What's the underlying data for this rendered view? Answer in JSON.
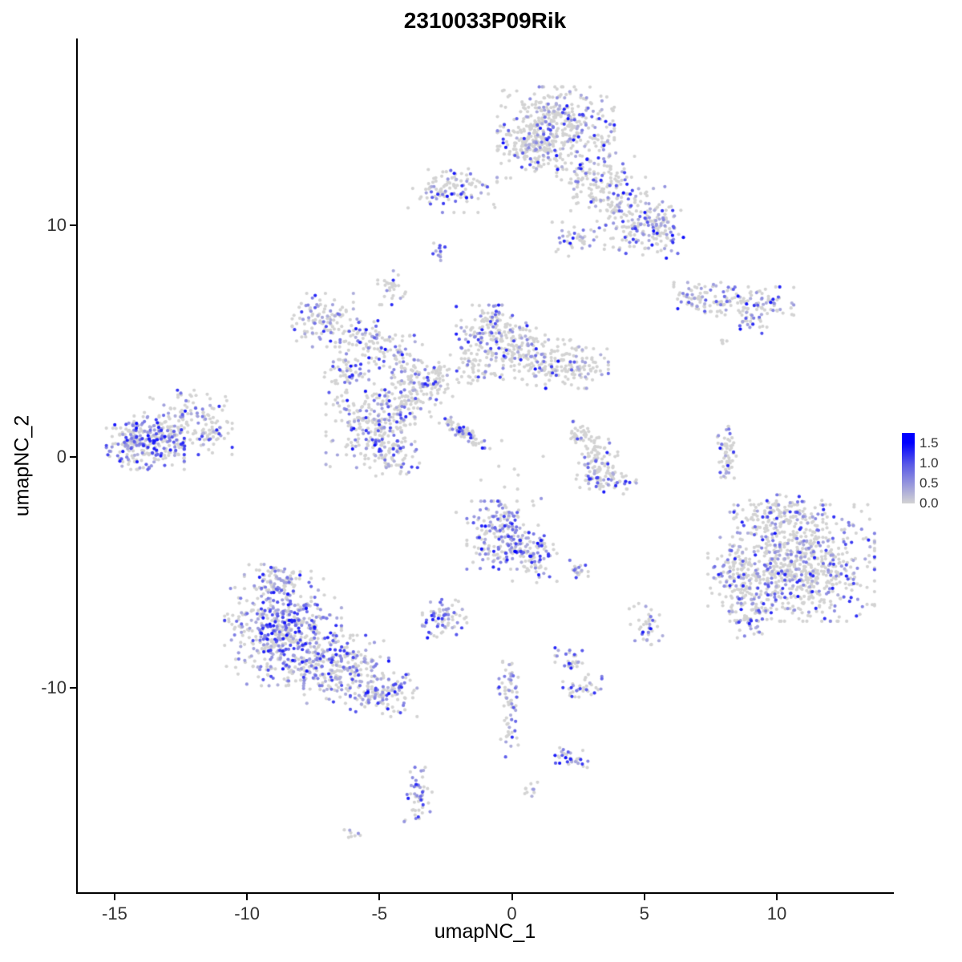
{
  "chart_data": {
    "type": "scatter",
    "title": "2310033P09Rik",
    "xlabel": "umapNC_1",
    "ylabel": "umapNC_2",
    "xlim": [
      -16.45,
      14.42
    ],
    "ylim": [
      -18.91,
      18.08
    ],
    "x_ticks": [
      {
        "v": -15,
        "label": "-15"
      },
      {
        "v": -10,
        "label": "-10"
      },
      {
        "v": -5,
        "label": "-5"
      },
      {
        "v": 0,
        "label": "0"
      },
      {
        "v": 5,
        "label": "5"
      },
      {
        "v": 10,
        "label": "10"
      }
    ],
    "y_ticks": [
      {
        "v": 10,
        "label": "10"
      },
      {
        "v": 0,
        "label": "0"
      },
      {
        "v": -10,
        "label": "-10"
      }
    ],
    "grid": false,
    "legend_position": "right",
    "point_radius": 2.1,
    "seed": 42,
    "color_scale": {
      "low_color": "#D3D3D3",
      "high_color": "#0000FF",
      "min": 0.0,
      "max": 1.5,
      "bar_max": 1.75,
      "labels": [
        "1.5",
        "1.0",
        "0.5",
        "0.0"
      ],
      "label_values": [
        1.5,
        1.0,
        0.5,
        0.0
      ]
    },
    "clusters": [
      {
        "cx": 1.6,
        "cy": 14.2,
        "sx": 1.05,
        "sy": 0.85,
        "n": 430,
        "expr": 0.25
      },
      {
        "cx": 0.55,
        "cy": 13.2,
        "sx": 0.5,
        "sy": 0.55,
        "n": 90,
        "expr": 0.2
      },
      {
        "cx": 3.1,
        "cy": 12.1,
        "sx": 0.7,
        "sy": 0.7,
        "n": 140,
        "expr": 0.3
      },
      {
        "cx": 4.5,
        "cy": 10.4,
        "sx": 0.75,
        "sy": 0.8,
        "n": 170,
        "expr": 0.35
      },
      {
        "cx": 2.3,
        "cy": 9.4,
        "sx": 0.4,
        "sy": 0.35,
        "n": 40,
        "expr": 0.3
      },
      {
        "cx": 5.55,
        "cy": 9.6,
        "sx": 0.45,
        "sy": 0.5,
        "n": 70,
        "expr": 0.45
      },
      {
        "cx": -2.3,
        "cy": 11.5,
        "sx": 0.8,
        "sy": 0.45,
        "n": 110,
        "expr": 0.3
      },
      {
        "cx": -2.85,
        "cy": 8.9,
        "sx": 0.15,
        "sy": 0.2,
        "n": 12,
        "expr": 0.3
      },
      {
        "cx": -4.6,
        "cy": 7.3,
        "sx": 0.25,
        "sy": 0.35,
        "n": 30,
        "expr": 0.2
      },
      {
        "cx": 7.1,
        "cy": 6.9,
        "sx": 0.5,
        "sy": 0.3,
        "n": 60,
        "expr": 0.35
      },
      {
        "cx": 8.9,
        "cy": 6.6,
        "sx": 0.8,
        "sy": 0.35,
        "n": 110,
        "expr": 0.35
      },
      {
        "cx": 9.0,
        "cy": 5.85,
        "sx": 0.3,
        "sy": 0.25,
        "n": 25,
        "expr": 0.3
      },
      {
        "cx": -7.2,
        "cy": 5.9,
        "sx": 0.55,
        "sy": 0.55,
        "n": 110,
        "expr": 0.35
      },
      {
        "cx": -5.6,
        "cy": 5.0,
        "sx": 0.45,
        "sy": 0.45,
        "n": 70,
        "expr": 0.3
      },
      {
        "cx": -6.3,
        "cy": 3.6,
        "sx": 0.4,
        "sy": 0.4,
        "n": 60,
        "expr": 0.3
      },
      {
        "cx": -4.2,
        "cy": 4.3,
        "sx": 0.5,
        "sy": 0.5,
        "n": 70,
        "expr": 0.3
      },
      {
        "cx": -0.9,
        "cy": 5.5,
        "sx": 0.6,
        "sy": 0.5,
        "n": 120,
        "expr": 0.3
      },
      {
        "cx": 0.2,
        "cy": 4.6,
        "sx": 0.7,
        "sy": 0.6,
        "n": 140,
        "expr": 0.25
      },
      {
        "cx": 1.9,
        "cy": 4.0,
        "sx": 0.8,
        "sy": 0.5,
        "n": 160,
        "expr": 0.3
      },
      {
        "cx": -1.6,
        "cy": 4.0,
        "sx": 0.4,
        "sy": 0.4,
        "n": 50,
        "expr": 0.2
      },
      {
        "cx": -5.4,
        "cy": 1.2,
        "sx": 0.8,
        "sy": 0.8,
        "n": 230,
        "expr": 0.35
      },
      {
        "cx": -4.0,
        "cy": 2.5,
        "sx": 0.6,
        "sy": 0.6,
        "n": 120,
        "expr": 0.3
      },
      {
        "cx": -3.0,
        "cy": 3.3,
        "sx": 0.5,
        "sy": 0.4,
        "n": 70,
        "expr": 0.25
      },
      {
        "cx": -4.6,
        "cy": 0.0,
        "sx": 0.5,
        "sy": 0.4,
        "n": 60,
        "expr": 0.3
      },
      {
        "cx": -1.9,
        "cy": 1.1,
        "sx": 0.6,
        "sy": 0.15,
        "rot": -40,
        "n": 70,
        "expr": 0.25
      },
      {
        "cx": -13.9,
        "cy": 0.6,
        "sx": 0.7,
        "sy": 0.55,
        "n": 280,
        "expr": 0.5
      },
      {
        "cx": -12.3,
        "cy": 1.4,
        "sx": 0.8,
        "sy": 0.7,
        "n": 140,
        "expr": 0.3
      },
      {
        "cx": -11.3,
        "cy": 1.0,
        "sx": 0.3,
        "sy": 0.3,
        "n": 30,
        "expr": 0.2
      },
      {
        "cx": 2.6,
        "cy": 0.9,
        "sx": 0.3,
        "sy": 0.3,
        "n": 40,
        "expr": 0.15
      },
      {
        "cx": 3.2,
        "cy": 0.1,
        "sx": 0.35,
        "sy": 0.35,
        "n": 50,
        "expr": 0.15
      },
      {
        "cx": 3.1,
        "cy": -0.9,
        "sx": 0.35,
        "sy": 0.3,
        "n": 50,
        "expr": 0.2
      },
      {
        "cx": 3.9,
        "cy": -1.0,
        "sx": 0.35,
        "sy": 0.3,
        "n": 40,
        "expr": 0.2
      },
      {
        "cx": 8.05,
        "cy": 0.2,
        "sx": 0.18,
        "sy": 0.65,
        "n": 60,
        "expr": 0.3
      },
      {
        "cx": 10.9,
        "cy": -4.6,
        "sx": 1.3,
        "sy": 1.2,
        "n": 700,
        "expr": 0.3
      },
      {
        "cx": 8.6,
        "cy": -5.2,
        "sx": 0.6,
        "sy": 0.9,
        "n": 150,
        "expr": 0.35
      },
      {
        "cx": 10.0,
        "cy": -2.6,
        "sx": 0.8,
        "sy": 0.45,
        "n": 120,
        "expr": 0.3
      },
      {
        "cx": 8.9,
        "cy": -7.0,
        "sx": 0.4,
        "sy": 0.4,
        "n": 60,
        "expr": 0.3
      },
      {
        "cx": -0.5,
        "cy": -3.4,
        "sx": 0.6,
        "sy": 0.7,
        "n": 200,
        "expr": 0.55
      },
      {
        "cx": 0.8,
        "cy": -4.4,
        "sx": 0.4,
        "sy": 0.5,
        "n": 80,
        "expr": 0.5
      },
      {
        "cx": 2.4,
        "cy": -4.9,
        "sx": 0.2,
        "sy": 0.2,
        "n": 20,
        "expr": 0.35
      },
      {
        "cx": -2.6,
        "cy": -7.0,
        "sx": 0.4,
        "sy": 0.4,
        "n": 70,
        "expr": 0.45
      },
      {
        "cx": -8.7,
        "cy": -7.6,
        "sx": 1.05,
        "sy": 1.1,
        "n": 550,
        "expr": 0.5
      },
      {
        "cx": -6.6,
        "cy": -9.2,
        "sx": 0.9,
        "sy": 0.7,
        "n": 250,
        "expr": 0.45
      },
      {
        "cx": -4.9,
        "cy": -10.3,
        "sx": 0.6,
        "sy": 0.45,
        "n": 120,
        "expr": 0.4
      },
      {
        "cx": -8.9,
        "cy": -5.4,
        "sx": 0.6,
        "sy": 0.35,
        "n": 80,
        "expr": 0.4
      },
      {
        "cx": 2.2,
        "cy": -8.9,
        "sx": 0.3,
        "sy": 0.3,
        "n": 30,
        "expr": 0.4
      },
      {
        "cx": 2.6,
        "cy": -10.0,
        "sx": 0.35,
        "sy": 0.3,
        "n": 35,
        "expr": 0.4
      },
      {
        "cx": 5.0,
        "cy": -7.3,
        "sx": 0.3,
        "sy": 0.45,
        "n": 40,
        "expr": 0.35
      },
      {
        "cx": -0.2,
        "cy": -10.7,
        "sx": 0.18,
        "sy": 1.2,
        "n": 70,
        "expr": 0.4
      },
      {
        "cx": 2.2,
        "cy": -12.9,
        "sx": 0.3,
        "sy": 0.3,
        "n": 35,
        "expr": 0.5
      },
      {
        "cx": -3.6,
        "cy": -14.7,
        "sx": 0.25,
        "sy": 0.6,
        "n": 50,
        "expr": 0.45
      },
      {
        "cx": -6.1,
        "cy": -16.3,
        "sx": 0.15,
        "sy": 0.12,
        "n": 8,
        "expr": 0.1
      },
      {
        "cx": 0.6,
        "cy": -14.4,
        "sx": 0.15,
        "sy": 0.15,
        "n": 10,
        "expr": 0.5
      },
      {
        "cx": 8.0,
        "cy": 4.9,
        "sx": 0.12,
        "sy": 0.1,
        "n": 5,
        "expr": 0.0
      },
      {
        "cx": 0.3,
        "cy": -1.2,
        "sx": 1.3,
        "sy": 0.9,
        "n": 12,
        "expr": 0.1
      }
    ],
    "extra_points": [
      {
        "x": 0.05,
        "y": -4.1,
        "v": 1.5
      },
      {
        "x": 8.8,
        "y": 6.6,
        "v": 1.35
      },
      {
        "x": 9.8,
        "y": 6.8,
        "v": 1.3
      },
      {
        "x": -13.8,
        "y": 0.4,
        "v": 1.1
      },
      {
        "x": -1.2,
        "y": -3.0,
        "v": 1.2
      }
    ]
  }
}
